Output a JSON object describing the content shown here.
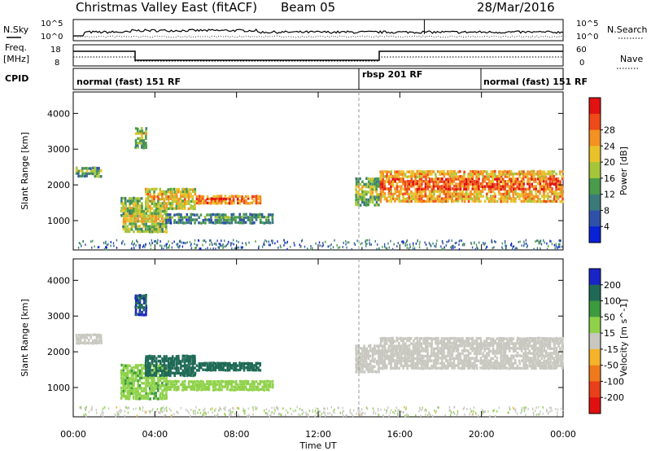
{
  "header": {
    "station": "Christmas Valley East (fitACF)",
    "beam": "Beam 05",
    "date": "28/Mar/2016"
  },
  "left_labels": {
    "nsky": "N.Sky",
    "freq_1": "Freq.",
    "freq_2": "[MHz]",
    "cpid": "CPID"
  },
  "right_labels": {
    "nsearch": "N.Search",
    "nave": "Nave"
  },
  "noise_axes": {
    "left_ticks": [
      "10^5",
      "10^0"
    ],
    "right_ticks": [
      "10^5",
      "10^0"
    ]
  },
  "freq_axes": {
    "left_ticks": [
      "18",
      "8"
    ],
    "right_ticks": [
      "60",
      "0"
    ]
  },
  "cpid_segments": [
    {
      "label": "normal (fast) 151 RF",
      "start_hour": 0,
      "end_hour": 14
    },
    {
      "label": "rbsp 201 RF",
      "start_hour": 14,
      "end_hour": 20
    },
    {
      "label": "normal (fast) 151 RF",
      "start_hour": 20,
      "end_hour": 24
    }
  ],
  "chart_data": [
    {
      "type": "heatmap",
      "panel": "power",
      "ylabel": "Slant Range [km]",
      "xlabel": "",
      "x_range_hours": [
        0,
        24
      ],
      "ylim": [
        180,
        4600
      ],
      "yticks": [
        "1000",
        "2000",
        "3000",
        "4000"
      ],
      "colorbar": {
        "label": "Power [dB]",
        "ticks": [
          "4",
          "8",
          "12",
          "16",
          "20",
          "24",
          "28"
        ],
        "colors": [
          "#0a22d6",
          "#2f52a8",
          "#3c7a7a",
          "#4a9c4a",
          "#a6c63a",
          "#e8c22a",
          "#f39122",
          "#ee4a1a",
          "#e01212"
        ]
      },
      "features": [
        {
          "start_hour": 0.1,
          "end_hour": 1.4,
          "range_low": 2200,
          "range_high": 2500,
          "value": 12
        },
        {
          "start_hour": 2.3,
          "end_hour": 3.4,
          "range_low": 1100,
          "range_high": 1650,
          "value": 14
        },
        {
          "start_hour": 2.4,
          "end_hour": 4.6,
          "range_low": 650,
          "range_high": 1300,
          "value": 16
        },
        {
          "start_hour": 3.5,
          "end_hour": 6.0,
          "range_low": 1300,
          "range_high": 1900,
          "value": 18
        },
        {
          "start_hour": 6.0,
          "end_hour": 9.2,
          "range_low": 1450,
          "range_high": 1700,
          "value": 24
        },
        {
          "start_hour": 4.5,
          "end_hour": 9.8,
          "range_low": 900,
          "range_high": 1200,
          "value": 10
        },
        {
          "start_hour": 3.0,
          "end_hour": 3.6,
          "range_low": 3000,
          "range_high": 3600,
          "value": 14
        },
        {
          "start_hour": 13.8,
          "end_hour": 15.0,
          "range_low": 1400,
          "range_high": 2200,
          "value": 14
        },
        {
          "start_hour": 15.0,
          "end_hour": 24.0,
          "range_low": 1500,
          "range_high": 2400,
          "value": 22
        }
      ]
    },
    {
      "type": "heatmap",
      "panel": "velocity",
      "ylabel": "Slant Range [km]",
      "xlabel": "Time UT",
      "x_range_hours": [
        0,
        24
      ],
      "ylim": [
        180,
        4600
      ],
      "yticks": [
        "1000",
        "2000",
        "3000",
        "4000"
      ],
      "xticks": [
        "00:00",
        "04:00",
        "08:00",
        "12:00",
        "16:00",
        "20:00",
        "00:00"
      ],
      "colorbar": {
        "label": "Velocity [m s^-1]",
        "ticks": [
          "200",
          "100",
          "50",
          "15",
          "-15",
          "-50",
          "-100",
          "-200"
        ],
        "colors": [
          "#1a24c6",
          "#1f6a56",
          "#3e9a3e",
          "#8fd24a",
          "#c8c8c0",
          "#f4b328",
          "#ef7a1c",
          "#e8401a",
          "#e01010"
        ]
      },
      "features": [
        {
          "start_hour": 0.1,
          "end_hour": 1.4,
          "range_low": 2200,
          "range_high": 2500,
          "value": 0
        },
        {
          "start_hour": 2.3,
          "end_hour": 4.6,
          "range_low": 650,
          "range_high": 1650,
          "value": 40
        },
        {
          "start_hour": 3.5,
          "end_hour": 6.0,
          "range_low": 1300,
          "range_high": 1900,
          "value": 150
        },
        {
          "start_hour": 6.0,
          "end_hour": 9.2,
          "range_low": 1450,
          "range_high": 1700,
          "value": 180
        },
        {
          "start_hour": 4.5,
          "end_hour": 9.8,
          "range_low": 900,
          "range_high": 1200,
          "value": 30
        },
        {
          "start_hour": 3.0,
          "end_hour": 3.6,
          "range_low": 3000,
          "range_high": 3600,
          "value": 200
        },
        {
          "start_hour": 13.8,
          "end_hour": 15.0,
          "range_low": 1400,
          "range_high": 2200,
          "value": 0
        },
        {
          "start_hour": 15.0,
          "end_hour": 24.0,
          "range_low": 1500,
          "range_high": 2400,
          "value": 0
        }
      ]
    }
  ]
}
